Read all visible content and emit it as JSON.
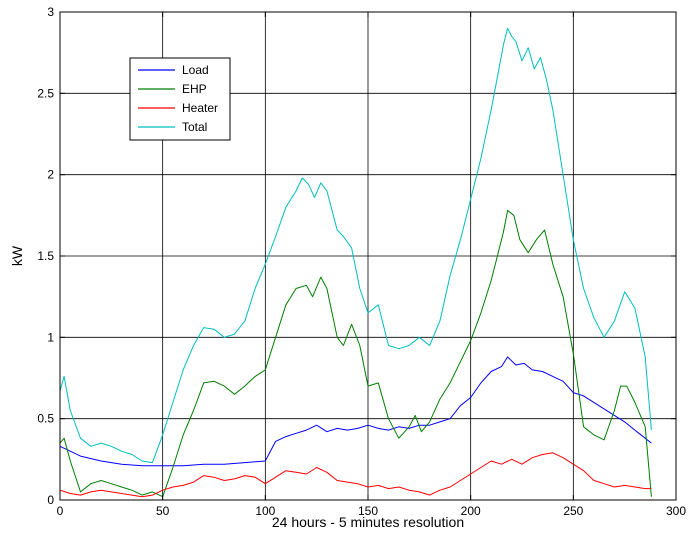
{
  "chart_data": {
    "type": "line",
    "title": "",
    "xlabel": "24 hours - 5 minutes resolution",
    "ylabel": "kW",
    "xlim": [
      0,
      300
    ],
    "ylim": [
      0,
      3
    ],
    "xticks": [
      0,
      50,
      100,
      150,
      200,
      250,
      300
    ],
    "yticks": [
      0,
      0.5,
      1,
      1.5,
      2,
      2.5,
      3
    ],
    "xtick_labels": [
      "0",
      "50",
      "100",
      "150",
      "200",
      "250",
      "300"
    ],
    "ytick_labels": [
      "0",
      "0.5",
      "1",
      "1.5",
      "2",
      "2.5",
      "3"
    ],
    "grid": true,
    "legend_position": "upper-left",
    "series": [
      {
        "name": "Load",
        "color": "#0000ff",
        "x": [
          0,
          5,
          10,
          20,
          30,
          40,
          50,
          60,
          70,
          80,
          90,
          100,
          105,
          110,
          115,
          120,
          125,
          130,
          135,
          140,
          145,
          150,
          155,
          160,
          165,
          170,
          175,
          180,
          185,
          190,
          195,
          200,
          205,
          210,
          215,
          218,
          222,
          226,
          230,
          235,
          240,
          245,
          250,
          255,
          260,
          265,
          270,
          275,
          280,
          285,
          288
        ],
        "y": [
          0.33,
          0.3,
          0.27,
          0.24,
          0.22,
          0.21,
          0.21,
          0.21,
          0.22,
          0.22,
          0.23,
          0.24,
          0.36,
          0.39,
          0.41,
          0.43,
          0.46,
          0.42,
          0.44,
          0.43,
          0.44,
          0.46,
          0.44,
          0.43,
          0.45,
          0.44,
          0.46,
          0.46,
          0.48,
          0.5,
          0.58,
          0.63,
          0.72,
          0.79,
          0.82,
          0.88,
          0.83,
          0.84,
          0.8,
          0.79,
          0.76,
          0.73,
          0.66,
          0.64,
          0.6,
          0.56,
          0.52,
          0.48,
          0.43,
          0.38,
          0.35
        ]
      },
      {
        "name": "EHP",
        "color": "#007f00",
        "x": [
          0,
          2,
          5,
          10,
          15,
          20,
          25,
          30,
          35,
          40,
          45,
          50,
          55,
          60,
          65,
          70,
          75,
          80,
          85,
          90,
          95,
          100,
          105,
          110,
          115,
          120,
          123,
          127,
          130,
          135,
          138,
          142,
          146,
          150,
          155,
          160,
          165,
          170,
          173,
          176,
          180,
          185,
          190,
          195,
          200,
          205,
          210,
          213,
          216,
          218,
          221,
          224,
          228,
          232,
          236,
          240,
          245,
          250,
          255,
          260,
          265,
          270,
          273,
          276,
          280,
          285,
          288
        ],
        "y": [
          0.35,
          0.38,
          0.24,
          0.05,
          0.1,
          0.12,
          0.1,
          0.08,
          0.06,
          0.03,
          0.05,
          0.02,
          0.2,
          0.4,
          0.55,
          0.72,
          0.73,
          0.7,
          0.65,
          0.7,
          0.76,
          0.8,
          1.0,
          1.2,
          1.3,
          1.32,
          1.25,
          1.37,
          1.3,
          1.0,
          0.95,
          1.08,
          0.95,
          0.7,
          0.72,
          0.5,
          0.38,
          0.45,
          0.52,
          0.42,
          0.48,
          0.62,
          0.72,
          0.85,
          0.98,
          1.15,
          1.35,
          1.5,
          1.65,
          1.78,
          1.75,
          1.6,
          1.52,
          1.6,
          1.66,
          1.45,
          1.25,
          0.9,
          0.45,
          0.4,
          0.37,
          0.55,
          0.7,
          0.7,
          0.6,
          0.45,
          0.02
        ]
      },
      {
        "name": "Heater",
        "color": "#ff0000",
        "x": [
          0,
          5,
          10,
          15,
          20,
          25,
          30,
          35,
          40,
          45,
          50,
          55,
          60,
          65,
          70,
          75,
          80,
          85,
          90,
          95,
          100,
          105,
          110,
          115,
          120,
          125,
          130,
          135,
          140,
          145,
          150,
          155,
          160,
          165,
          170,
          175,
          180,
          185,
          190,
          195,
          200,
          205,
          210,
          215,
          220,
          225,
          230,
          235,
          240,
          245,
          250,
          255,
          260,
          265,
          270,
          275,
          280,
          285,
          288
        ],
        "y": [
          0.06,
          0.04,
          0.03,
          0.05,
          0.06,
          0.05,
          0.04,
          0.03,
          0.02,
          0.03,
          0.06,
          0.08,
          0.09,
          0.11,
          0.15,
          0.14,
          0.12,
          0.13,
          0.15,
          0.14,
          0.1,
          0.14,
          0.18,
          0.17,
          0.16,
          0.2,
          0.17,
          0.12,
          0.11,
          0.1,
          0.08,
          0.09,
          0.07,
          0.08,
          0.06,
          0.05,
          0.03,
          0.06,
          0.08,
          0.12,
          0.16,
          0.2,
          0.24,
          0.22,
          0.25,
          0.22,
          0.26,
          0.28,
          0.29,
          0.26,
          0.22,
          0.18,
          0.12,
          0.1,
          0.08,
          0.09,
          0.08,
          0.07,
          0.07
        ]
      },
      {
        "name": "Total",
        "color": "#00bfbf",
        "x": [
          0,
          2,
          5,
          10,
          15,
          20,
          25,
          30,
          35,
          40,
          45,
          50,
          55,
          60,
          65,
          70,
          75,
          80,
          85,
          90,
          95,
          100,
          105,
          110,
          115,
          118,
          121,
          124,
          127,
          130,
          135,
          138,
          142,
          146,
          150,
          155,
          160,
          165,
          170,
          175,
          180,
          185,
          190,
          195,
          200,
          205,
          210,
          213,
          216,
          218,
          220,
          222,
          225,
          228,
          231,
          234,
          237,
          240,
          245,
          250,
          255,
          260,
          265,
          270,
          275,
          280,
          285,
          288
        ],
        "y": [
          0.67,
          0.76,
          0.55,
          0.38,
          0.33,
          0.35,
          0.33,
          0.3,
          0.28,
          0.24,
          0.23,
          0.4,
          0.6,
          0.8,
          0.95,
          1.06,
          1.05,
          1.0,
          1.02,
          1.1,
          1.3,
          1.45,
          1.62,
          1.8,
          1.9,
          1.98,
          1.94,
          1.86,
          1.95,
          1.9,
          1.66,
          1.62,
          1.55,
          1.3,
          1.15,
          1.2,
          0.95,
          0.93,
          0.95,
          1.0,
          0.95,
          1.1,
          1.38,
          1.6,
          1.85,
          2.1,
          2.4,
          2.6,
          2.8,
          2.9,
          2.85,
          2.82,
          2.7,
          2.78,
          2.65,
          2.72,
          2.58,
          2.4,
          2.0,
          1.6,
          1.3,
          1.12,
          1.0,
          1.1,
          1.28,
          1.18,
          0.88,
          0.43
        ]
      }
    ]
  }
}
